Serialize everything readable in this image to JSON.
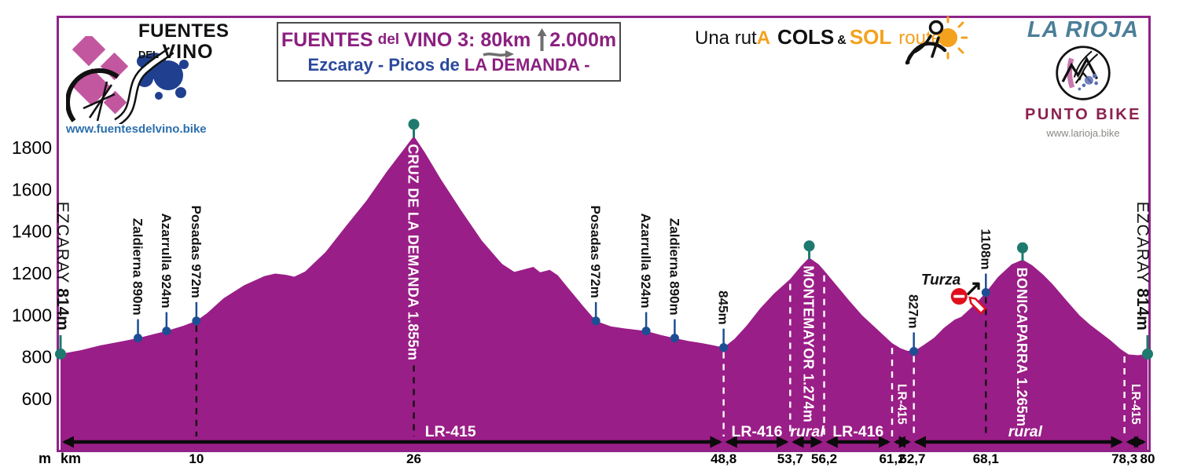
{
  "header": {
    "fuentes_logo": {
      "line1": "FUENTES",
      "line2_small": "DEL",
      "line2_big": "VINO",
      "url": "www.fuentesdelvino.bike"
    },
    "title_box": {
      "name1": "FUENTES",
      "name2": "del",
      "name3": "VINO 3:",
      "distance": "80km",
      "gain": "2.000m",
      "route_blue": "Ezcaray - Picos de",
      "route_purple": "LA DEMANDA -"
    },
    "ruta": {
      "p1": "Una rut",
      "p2": "A",
      "p3": "COLS",
      "p4": "&",
      "p5": "SOL",
      "p6": "route"
    },
    "rioja_logo": {
      "title": "LA RIOJA",
      "subtitle": "PUNTO BIKE",
      "url": "www.larioja.bike"
    }
  },
  "colors": {
    "fill_purple": "#9A1E87",
    "frame_purple": "#8E2488",
    "teal_dot": "#1E7A6E",
    "navy_dot": "#1D4E94",
    "black": "#131313",
    "white": "#FFFFFF",
    "red": "#E10E1C",
    "title_purple": "#8B2080",
    "subtitle_blue": "#2B4A9C",
    "orange": "#F4A11D",
    "rioja_blue": "#4C7F99",
    "punto_maroon": "#8B2150",
    "link_blue": "#2C6FAE",
    "gray_arrow": "#6E6E6E"
  },
  "chart_data": {
    "type": "area",
    "title": "FUENTES del VINO 3: 80km +2.000m - Ezcaray - Picos de LA DEMANDA -",
    "x_unit": "km",
    "y_unit": "m",
    "xlim": [
      0,
      80
    ],
    "ylim": [
      500,
      1900
    ],
    "y_ticks": [
      600,
      800,
      1000,
      1200,
      1400,
      1600,
      1800
    ],
    "x_ticks": [
      {
        "km": 10,
        "label": "10"
      },
      {
        "km": 26,
        "label": "26"
      },
      {
        "km": 48.8,
        "label": "48,8"
      },
      {
        "km": 53.7,
        "label": "53,7"
      },
      {
        "km": 56.2,
        "label": "56,2"
      },
      {
        "km": 61.2,
        "label": "61,2"
      },
      {
        "km": 62.7,
        "label": "62,7"
      },
      {
        "km": 68.1,
        "label": "68,1"
      },
      {
        "km": 78.3,
        "label": "78,3"
      },
      {
        "km": 80,
        "label": "80"
      }
    ],
    "profile": [
      [
        0,
        814
      ],
      [
        1.5,
        832
      ],
      [
        3,
        856
      ],
      [
        4.5,
        874
      ],
      [
        5.7,
        890
      ],
      [
        6.8,
        908
      ],
      [
        7.8,
        924
      ],
      [
        9,
        948
      ],
      [
        10,
        972
      ],
      [
        10.8,
        1010
      ],
      [
        12,
        1080
      ],
      [
        13.5,
        1142
      ],
      [
        15,
        1186
      ],
      [
        15.8,
        1198
      ],
      [
        16.6,
        1192
      ],
      [
        17.2,
        1183
      ],
      [
        18,
        1208
      ],
      [
        19.5,
        1300
      ],
      [
        21,
        1424
      ],
      [
        22.5,
        1545
      ],
      [
        24,
        1684
      ],
      [
        25.2,
        1786
      ],
      [
        26,
        1855
      ],
      [
        26.8,
        1778
      ],
      [
        28,
        1648
      ],
      [
        29.5,
        1498
      ],
      [
        31,
        1356
      ],
      [
        32.5,
        1244
      ],
      [
        33.4,
        1206
      ],
      [
        34.2,
        1220
      ],
      [
        34.8,
        1230
      ],
      [
        35.3,
        1204
      ],
      [
        36,
        1216
      ],
      [
        36.6,
        1190
      ],
      [
        37.5,
        1118
      ],
      [
        38.5,
        1040
      ],
      [
        39.4,
        972
      ],
      [
        40.5,
        946
      ],
      [
        41.5,
        936
      ],
      [
        43.1,
        924
      ],
      [
        44.2,
        904
      ],
      [
        45.2,
        890
      ],
      [
        46.2,
        876
      ],
      [
        47.2,
        866
      ],
      [
        48,
        856
      ],
      [
        48.8,
        845
      ],
      [
        49.6,
        886
      ],
      [
        50.5,
        950
      ],
      [
        51.5,
        1032
      ],
      [
        52.5,
        1102
      ],
      [
        53.7,
        1172
      ],
      [
        54.5,
        1234
      ],
      [
        55.1,
        1274
      ],
      [
        55.8,
        1242
      ],
      [
        56.2,
        1212
      ],
      [
        57,
        1150
      ],
      [
        58,
        1072
      ],
      [
        59,
        998
      ],
      [
        60,
        938
      ],
      [
        60.8,
        890
      ],
      [
        61.2,
        866
      ],
      [
        61.8,
        842
      ],
      [
        62.3,
        830
      ],
      [
        62.8,
        827
      ],
      [
        63.5,
        856
      ],
      [
        64.3,
        892
      ],
      [
        65,
        938
      ],
      [
        65.8,
        978
      ],
      [
        66.3,
        992
      ],
      [
        67,
        1034
      ],
      [
        67.6,
        1072
      ],
      [
        68.1,
        1108
      ],
      [
        69,
        1182
      ],
      [
        70,
        1242
      ],
      [
        70.8,
        1265
      ],
      [
        71.5,
        1238
      ],
      [
        72.3,
        1194
      ],
      [
        73,
        1148
      ],
      [
        74,
        1072
      ],
      [
        75,
        998
      ],
      [
        75.8,
        952
      ],
      [
        76.5,
        918
      ],
      [
        77.3,
        878
      ],
      [
        78,
        838
      ],
      [
        78.6,
        812
      ],
      [
        79.3,
        808
      ],
      [
        80,
        814
      ]
    ],
    "waypoints": [
      {
        "km": 0,
        "elev": 814,
        "name": "EZCARAY",
        "alt": "814m",
        "dot": "teal",
        "marker": "point",
        "label_style": "terminal-left"
      },
      {
        "km": 5.7,
        "elev": 890,
        "name": "Zaldierna",
        "alt": "890m",
        "dot": "navy",
        "marker": "point",
        "label_style": "above"
      },
      {
        "km": 7.8,
        "elev": 924,
        "name": "Azarrulla",
        "alt": "924m",
        "dot": "navy",
        "marker": "point",
        "label_style": "above"
      },
      {
        "km": 10,
        "elev": 972,
        "name": "Posadas",
        "alt": "972m",
        "dot": "navy",
        "marker": "point",
        "label_style": "above",
        "dash": "black"
      },
      {
        "km": 26,
        "elev": 1855,
        "name": "CRUZ DE LA DEMANDA",
        "alt": "1.855m",
        "dot": "teal",
        "marker": "peak",
        "label_style": "inside",
        "dash": "black"
      },
      {
        "km": 39.4,
        "elev": 972,
        "name": "Posadas",
        "alt": "972m",
        "dot": "navy",
        "marker": "point",
        "label_style": "above"
      },
      {
        "km": 43.1,
        "elev": 924,
        "name": "Azarrulla",
        "alt": "924m",
        "dot": "navy",
        "marker": "point",
        "label_style": "above"
      },
      {
        "km": 45.2,
        "elev": 890,
        "name": "Zaldierna",
        "alt": "890m",
        "dot": "navy",
        "marker": "point",
        "label_style": "above"
      },
      {
        "km": 48.8,
        "elev": 845,
        "name": "",
        "alt": "845m",
        "dot": "navy",
        "marker": "point",
        "label_style": "above",
        "dash": "white"
      },
      {
        "km": 55.1,
        "elev": 1274,
        "name": "MONTEMAYOR",
        "alt": "1.274m",
        "dot": "teal",
        "marker": "peak",
        "label_style": "inside"
      },
      {
        "km": 62.8,
        "elev": 827,
        "name": "",
        "alt": "827m",
        "dot": "navy",
        "marker": "point",
        "label_style": "above",
        "dash": "white"
      },
      {
        "km": 68.1,
        "elev": 1108,
        "name": "",
        "alt": "1108m",
        "dot": "navy",
        "marker": "point",
        "label_style": "above",
        "dash": "black"
      },
      {
        "km": 70.8,
        "elev": 1265,
        "name": "BONICAPARRA",
        "alt": "1.265m",
        "dot": "teal",
        "marker": "peak",
        "label_style": "inside"
      },
      {
        "km": 80,
        "elev": 814,
        "name": "EZCARAY",
        "alt": "814m",
        "dot": "teal",
        "marker": "point",
        "label_style": "terminal-right"
      }
    ],
    "road_boundaries_km": [
      53.7,
      56.2,
      61.2,
      78.3
    ],
    "road_segments": [
      {
        "from": 0,
        "to": 48.8,
        "label": "LR-415",
        "style": "plain",
        "label_km": 28.7
      },
      {
        "from": 48.8,
        "to": 53.7,
        "label": "LR-416",
        "style": "plain"
      },
      {
        "from": 53.7,
        "to": 56.2,
        "label": "rural",
        "style": "italic"
      },
      {
        "from": 56.2,
        "to": 61.2,
        "label": "LR-416",
        "style": "plain"
      },
      {
        "from": 61.2,
        "to": 62.7,
        "label": "LR-415",
        "style": "vertical"
      },
      {
        "from": 62.7,
        "to": 78.3,
        "label": "rural",
        "style": "italic",
        "label_km": 71
      },
      {
        "from": 78.3,
        "to": 80,
        "label": "LR-415",
        "style": "vertical"
      }
    ],
    "annotation": {
      "label": "Turza",
      "at_km": 68.1,
      "target_alt": "1108m",
      "icon": "no-entry-sign",
      "pointer": "up-right-arrow"
    }
  }
}
